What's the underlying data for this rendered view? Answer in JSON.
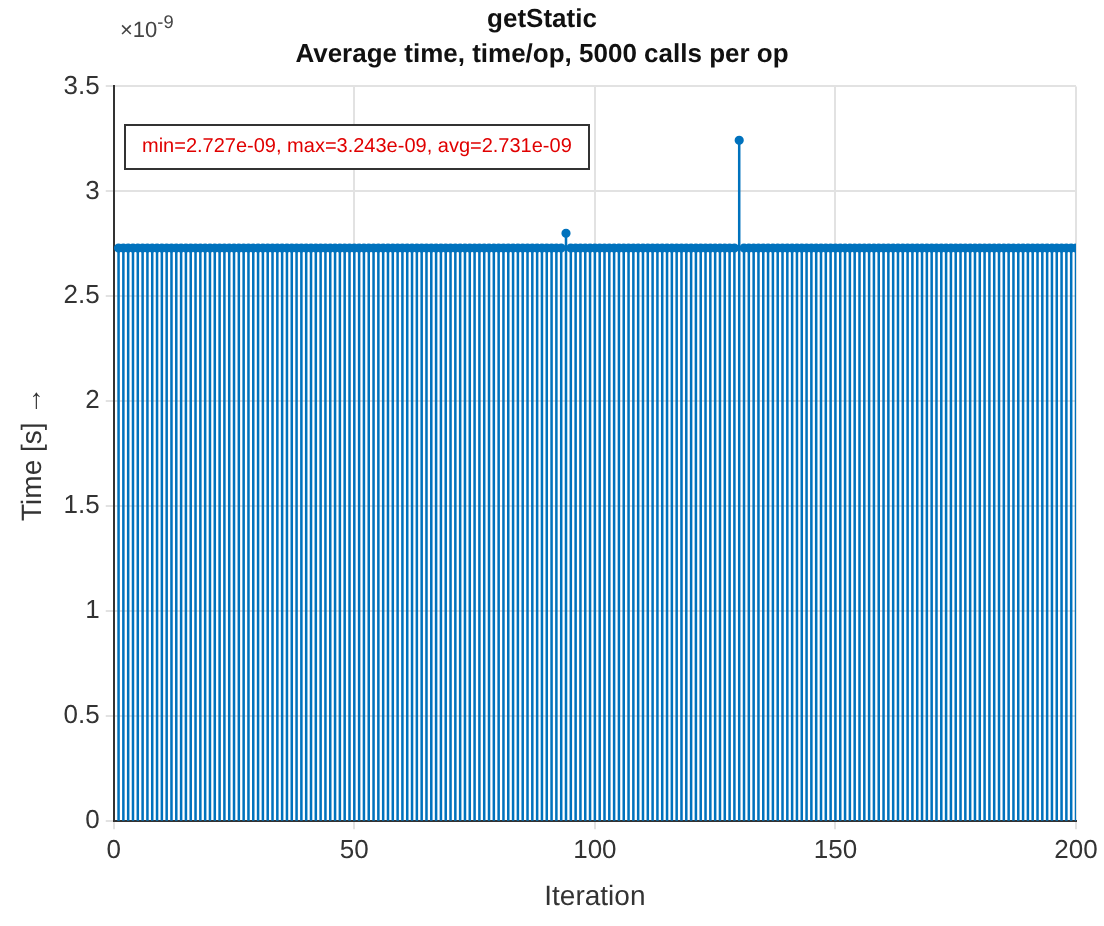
{
  "chart_data": {
    "type": "lollipop",
    "title": "getStatic",
    "subtitle": "Average time, time/op, 5000 calls per op",
    "xlabel": "Iteration",
    "ylabel": "Time [s] →",
    "annotations": [
      "min=2.727e-09, max=3.243e-09, avg=2.731e-09",
      "×10$^{-9}$"
    ],
    "x": [
      1,
      2,
      3,
      4,
      5,
      6,
      7,
      8,
      9,
      10,
      11,
      12,
      13,
      14,
      15,
      16,
      17,
      18,
      19,
      20,
      21,
      22,
      23,
      24,
      25,
      26,
      27,
      28,
      29,
      30,
      31,
      32,
      33,
      34,
      35,
      36,
      37,
      38,
      39,
      40,
      41,
      42,
      43,
      44,
      45,
      46,
      47,
      48,
      49,
      50,
      51,
      52,
      53,
      54,
      55,
      56,
      57,
      58,
      59,
      60,
      61,
      62,
      63,
      64,
      65,
      66,
      67,
      68,
      69,
      70,
      71,
      72,
      73,
      74,
      75,
      76,
      77,
      78,
      79,
      80,
      81,
      82,
      83,
      84,
      85,
      86,
      87,
      88,
      89,
      90,
      91,
      92,
      93,
      94,
      95,
      96,
      97,
      98,
      99,
      100,
      101,
      102,
      103,
      104,
      105,
      106,
      107,
      108,
      109,
      110,
      111,
      112,
      113,
      114,
      115,
      116,
      117,
      118,
      119,
      120,
      121,
      122,
      123,
      124,
      125,
      126,
      127,
      128,
      129,
      130,
      131,
      132,
      133,
      134,
      135,
      136,
      137,
      138,
      139,
      140,
      141,
      142,
      143,
      144,
      145,
      146,
      147,
      148,
      149,
      150,
      151,
      152,
      153,
      154,
      155,
      156,
      157,
      158,
      159,
      160,
      161,
      162,
      163,
      164,
      165,
      166,
      167,
      168,
      169,
      170,
      171,
      172,
      173,
      174,
      175,
      176,
      177,
      178,
      179,
      180,
      181,
      182,
      183,
      184,
      185,
      186,
      187,
      188,
      189,
      190,
      191,
      192,
      193,
      194,
      195,
      196,
      197,
      198,
      199,
      200
    ],
    "series": [
      {
        "color": "#0072bd",
        "values": [
          2.73,
          2.73,
          2.73,
          2.73,
          2.73,
          2.73,
          2.73,
          2.73,
          2.73,
          2.73,
          2.73,
          2.73,
          2.73,
          2.73,
          2.73,
          2.73,
          2.73,
          2.73,
          2.73,
          2.73,
          2.73,
          2.73,
          2.73,
          2.73,
          2.73,
          2.73,
          2.73,
          2.73,
          2.73,
          2.73,
          2.73,
          2.73,
          2.73,
          2.73,
          2.73,
          2.73,
          2.73,
          2.73,
          2.73,
          2.73,
          2.73,
          2.73,
          2.73,
          2.73,
          2.73,
          2.73,
          2.73,
          2.73,
          2.73,
          2.73,
          2.73,
          2.73,
          2.73,
          2.73,
          2.73,
          2.73,
          2.73,
          2.73,
          2.73,
          2.73,
          2.73,
          2.73,
          2.73,
          2.73,
          2.73,
          2.73,
          2.73,
          2.73,
          2.73,
          2.73,
          2.73,
          2.73,
          2.73,
          2.73,
          2.73,
          2.73,
          2.73,
          2.73,
          2.73,
          2.73,
          2.73,
          2.73,
          2.73,
          2.73,
          2.73,
          2.73,
          2.73,
          2.73,
          2.73,
          2.73,
          2.73,
          2.73,
          2.73,
          2.8,
          2.73,
          2.73,
          2.73,
          2.73,
          2.73,
          2.73,
          2.73,
          2.73,
          2.73,
          2.73,
          2.73,
          2.73,
          2.73,
          2.73,
          2.73,
          2.73,
          2.73,
          2.73,
          2.73,
          2.73,
          2.73,
          2.73,
          2.73,
          2.73,
          2.73,
          2.73,
          2.73,
          2.73,
          2.73,
          2.73,
          2.73,
          2.73,
          2.73,
          2.73,
          2.73,
          3.243,
          2.73,
          2.73,
          2.73,
          2.73,
          2.73,
          2.73,
          2.73,
          2.73,
          2.73,
          2.73,
          2.73,
          2.73,
          2.73,
          2.73,
          2.73,
          2.73,
          2.73,
          2.73,
          2.73,
          2.73,
          2.73,
          2.73,
          2.73,
          2.73,
          2.73,
          2.73,
          2.73,
          2.73,
          2.73,
          2.73,
          2.73,
          2.73,
          2.73,
          2.73,
          2.73,
          2.73,
          2.73,
          2.73,
          2.73,
          2.73,
          2.73,
          2.73,
          2.73,
          2.73,
          2.73,
          2.73,
          2.73,
          2.73,
          2.73,
          2.73,
          2.73,
          2.73,
          2.73,
          2.73,
          2.73,
          2.73,
          2.73,
          2.73,
          2.73,
          2.73,
          2.73,
          2.73,
          2.73,
          2.73,
          2.73,
          2.73,
          2.73,
          2.73,
          2.73,
          2.73
        ]
      }
    ],
    "xlim": [
      0,
      200
    ],
    "xticks": [
      0,
      50,
      100,
      150,
      200
    ],
    "ylim": [
      0,
      3.5
    ],
    "yticks": [
      0,
      0.5,
      1,
      1.5,
      2,
      2.5,
      3,
      3.5
    ],
    "grid": true,
    "legend": false,
    "marker": "circle"
  }
}
